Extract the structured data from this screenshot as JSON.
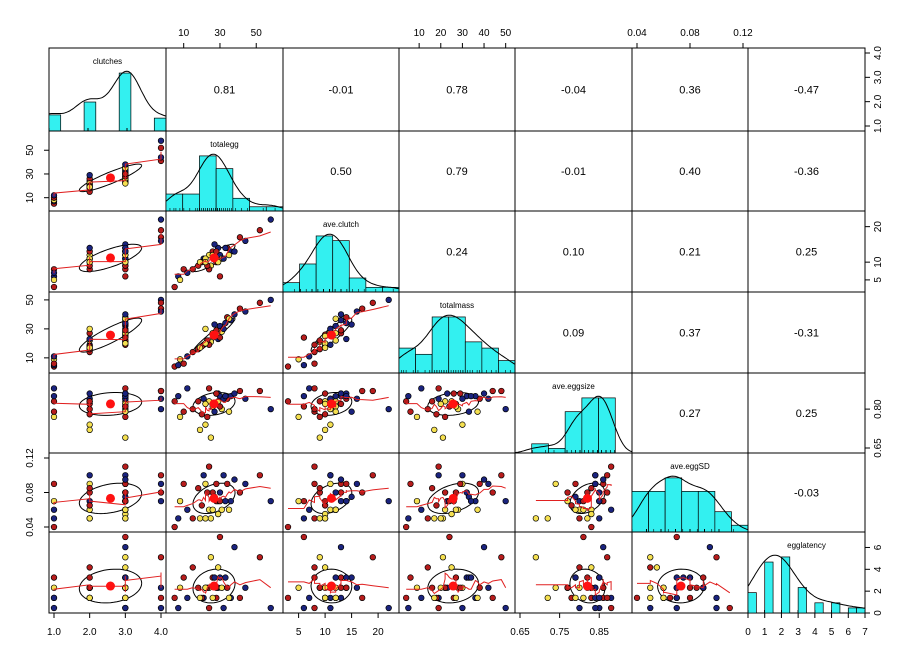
{
  "chart_data": {
    "type": "scatter",
    "title": "",
    "variables": [
      "clutches",
      "totalegg",
      "ave.clutch",
      "totalmass",
      "ave.eggsize",
      "ave.eggSD",
      "egglatency"
    ],
    "correlations": [
      [
        "",
        "0.81",
        "-0.01",
        "0.78",
        "-0.04",
        "0.36",
        "-0.47"
      ],
      [
        "",
        "",
        "0.50",
        "0.79",
        "-0.01",
        "0.40",
        "-0.36"
      ],
      [
        "",
        "",
        "",
        "0.24",
        "0.10",
        "0.21",
        "0.25"
      ],
      [
        "",
        "",
        "",
        "",
        "0.09",
        "0.37",
        "-0.31"
      ],
      [
        "",
        "",
        "",
        "",
        "",
        "0.27",
        "0.25"
      ],
      [
        "",
        "",
        "",
        "",
        "",
        "",
        "-0.03"
      ],
      [
        "",
        "",
        "",
        "",
        "",
        "",
        ""
      ]
    ],
    "ranges": {
      "clutches": [
        1.0,
        4.0
      ],
      "totalegg": [
        3,
        62
      ],
      "ave.clutch": [
        3,
        23
      ],
      "totalmass": [
        3,
        52
      ],
      "ave.eggsize": [
        0.65,
        0.92
      ],
      "ave.eggSD": [
        0.04,
        0.12
      ],
      "egglatency": [
        0,
        7
      ]
    },
    "bottom_axis_ticks": [
      [
        "1.0",
        "2.0",
        "3.0",
        "4.0"
      ],
      [],
      [
        "5",
        "10",
        "15",
        "20"
      ],
      [],
      [
        "0.65",
        "0.75",
        "0.85"
      ],
      [],
      [
        "0",
        "1",
        "2",
        "3",
        "4",
        "5",
        "6",
        "7"
      ]
    ],
    "top_axis_ticks": [
      [],
      [
        "10",
        "30",
        "50"
      ],
      [],
      [
        "10",
        "20",
        "30",
        "40",
        "50"
      ],
      [],
      [
        "0.04",
        "0.08",
        "0.12"
      ],
      []
    ],
    "left_axis_ticks": [
      [],
      [
        "10",
        "30",
        "50"
      ],
      [],
      [
        "10",
        "30",
        "50"
      ],
      [],
      [
        "0.04",
        "0.08",
        "0.12"
      ],
      []
    ],
    "right_axis_ticks": [
      [
        "1.0",
        "2.0",
        "3.0",
        "4.0"
      ],
      [],
      [
        "5",
        "10",
        "20"
      ],
      [],
      [
        "0.65",
        "0.80"
      ],
      [],
      [
        "0",
        "2",
        "4",
        "6"
      ]
    ],
    "point_colors": [
      "#b71c1c",
      "#f5e050",
      "#1a237e"
    ],
    "colors": {
      "hist_fill": "#33f0f0",
      "points_outline": "#000000",
      "loess": "#e02020",
      "centroid": "#ff1111",
      "ellipse": "#000000"
    },
    "observations": [
      {
        "g": 0,
        "v": [
          1,
          5,
          3,
          4,
          0.83,
          0.04,
          1
        ]
      },
      {
        "g": 2,
        "v": [
          1,
          7,
          6,
          5,
          0.85,
          0.05,
          0
        ]
      },
      {
        "g": 1,
        "v": [
          1,
          8,
          5,
          9,
          0.77,
          0.07,
          2
        ]
      },
      {
        "g": 0,
        "v": [
          1,
          10,
          8,
          6,
          0.79,
          0.09,
          3
        ]
      },
      {
        "g": 2,
        "v": [
          1,
          12,
          7,
          11,
          0.88,
          0.06,
          1
        ]
      },
      {
        "g": 0,
        "v": [
          2,
          15,
          8,
          14,
          0.8,
          0.05,
          4
        ]
      },
      {
        "g": 2,
        "v": [
          2,
          21,
          11,
          19,
          0.84,
          0.1,
          1
        ]
      },
      {
        "g": 1,
        "v": [
          2,
          24,
          12,
          22,
          0.83,
          0.06,
          2
        ]
      },
      {
        "g": 0,
        "v": [
          2,
          26,
          13,
          27,
          0.82,
          0.08,
          3
        ]
      },
      {
        "g": 2,
        "v": [
          2,
          29,
          14,
          23,
          0.86,
          0.07,
          2
        ]
      },
      {
        "g": 1,
        "v": [
          2,
          22,
          11,
          30,
          0.74,
          0.09,
          2
        ]
      },
      {
        "g": 0,
        "v": [
          2,
          20,
          10,
          18,
          0.78,
          0.065,
          1
        ]
      },
      {
        "g": 1,
        "v": [
          3,
          25,
          9,
          21,
          0.69,
          0.05,
          5
        ]
      },
      {
        "g": 0,
        "v": [
          3,
          28,
          10,
          26,
          0.86,
          0.07,
          1
        ]
      },
      {
        "g": 2,
        "v": [
          3,
          30,
          12,
          32,
          0.85,
          0.08,
          3
        ]
      },
      {
        "g": 1,
        "v": [
          3,
          31,
          11,
          28,
          0.8,
          0.06,
          2
        ]
      },
      {
        "g": 0,
        "v": [
          3,
          34,
          14,
          38,
          0.84,
          0.09,
          2
        ]
      },
      {
        "g": 2,
        "v": [
          3,
          36,
          13,
          36,
          0.85,
          0.07,
          1
        ]
      },
      {
        "g": 0,
        "v": [
          3,
          24,
          8,
          19,
          0.88,
          0.11,
          0
        ]
      },
      {
        "g": 2,
        "v": [
          3,
          27,
          15,
          33,
          0.79,
          0.075,
          3
        ]
      },
      {
        "g": 1,
        "v": [
          3,
          29,
          10,
          25,
          0.83,
          0.055,
          4
        ]
      },
      {
        "g": 0,
        "v": [
          3,
          23,
          9,
          22,
          0.77,
          0.08,
          2
        ]
      },
      {
        "g": 2,
        "v": [
          3,
          32,
          11,
          30,
          0.84,
          0.1,
          0
        ]
      },
      {
        "g": 1,
        "v": [
          3,
          26,
          12,
          27,
          0.81,
          0.06,
          1
        ]
      },
      {
        "g": 0,
        "v": [
          3,
          28,
          13,
          29,
          0.86,
          0.09,
          2
        ]
      },
      {
        "g": 2,
        "v": [
          3,
          33,
          14,
          34,
          0.85,
          0.07,
          3
        ]
      },
      {
        "g": 1,
        "v": [
          3,
          22,
          10,
          20,
          0.82,
          0.05,
          2
        ]
      },
      {
        "g": 0,
        "v": [
          4,
          41,
          17,
          44,
          0.87,
          0.08,
          1
        ]
      },
      {
        "g": 2,
        "v": [
          4,
          44,
          16,
          42,
          0.84,
          0.09,
          2
        ]
      },
      {
        "g": 2,
        "v": [
          4,
          58,
          22,
          50,
          0.8,
          0.07,
          0
        ]
      },
      {
        "g": 0,
        "v": [
          4,
          52,
          19,
          48,
          0.87,
          0.1,
          5
        ]
      },
      {
        "g": 1,
        "v": [
          3,
          35,
          12,
          37,
          0.79,
          0.06,
          1
        ]
      },
      {
        "g": 0,
        "v": [
          2,
          18,
          9,
          16,
          0.83,
          0.085,
          2
        ]
      },
      {
        "g": 2,
        "v": [
          3,
          38,
          13,
          40,
          0.86,
          0.095,
          6
        ]
      },
      {
        "g": 1,
        "v": [
          2,
          19,
          10,
          17,
          0.72,
          0.05,
          1
        ]
      },
      {
        "g": 0,
        "v": [
          3,
          30,
          6,
          24,
          0.81,
          0.07,
          7
        ]
      }
    ]
  }
}
